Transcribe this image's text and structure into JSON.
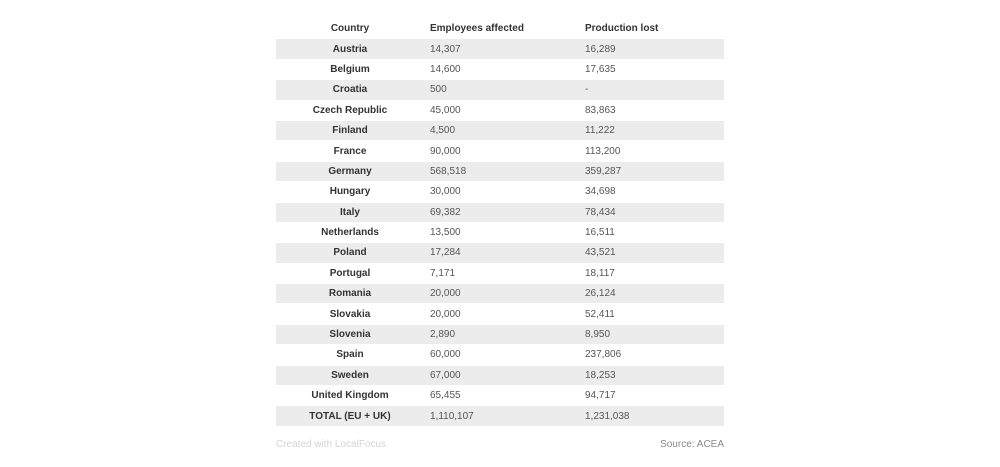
{
  "table": {
    "headers": {
      "country": "Country",
      "employees": "Employees affected",
      "production": "Production lost"
    },
    "rows": [
      {
        "country": "Austria",
        "employees": "14,307",
        "production": "16,289"
      },
      {
        "country": "Belgium",
        "employees": "14,600",
        "production": "17,635"
      },
      {
        "country": "Croatia",
        "employees": "500",
        "production": "-"
      },
      {
        "country": "Czech Republic",
        "employees": "45,000",
        "production": "83,863"
      },
      {
        "country": "Finland",
        "employees": "4,500",
        "production": "11,222"
      },
      {
        "country": "France",
        "employees": "90,000",
        "production": "113,200"
      },
      {
        "country": "Germany",
        "employees": "568,518",
        "production": "359,287"
      },
      {
        "country": "Hungary",
        "employees": "30,000",
        "production": "34,698"
      },
      {
        "country": "Italy",
        "employees": "69,382",
        "production": "78,434"
      },
      {
        "country": "Netherlands",
        "employees": "13,500",
        "production": "16,511"
      },
      {
        "country": "Poland",
        "employees": "17,284",
        "production": "43,521"
      },
      {
        "country": "Portugal",
        "employees": "7,171",
        "production": "18,117"
      },
      {
        "country": "Romania",
        "employees": "20,000",
        "production": "26,124"
      },
      {
        "country": "Slovakia",
        "employees": "20,000",
        "production": "52,411"
      },
      {
        "country": "Slovenia",
        "employees": "2,890",
        "production": "8,950"
      },
      {
        "country": "Spain",
        "employees": "60,000",
        "production": "237,806"
      },
      {
        "country": "Sweden",
        "employees": "67,000",
        "production": "18,253"
      },
      {
        "country": "United Kingdom",
        "employees": "65,455",
        "production": "94,717"
      },
      {
        "country": "TOTAL (EU + UK)",
        "employees": "1,110,107",
        "production": "1,231,038"
      }
    ]
  },
  "footer": {
    "created": "Created with LocalFocus",
    "source": "Source: ACEA"
  },
  "colors": {
    "row_stripe": "#ececec",
    "header_text": "#333333",
    "value_text": "#555555"
  }
}
